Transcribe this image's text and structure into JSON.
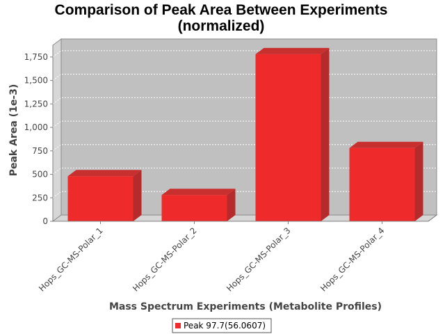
{
  "chart_data": {
    "type": "bar",
    "title": [
      "Comparison of Peak Area Between Experiments",
      "(normalized)"
    ],
    "xlabel": "Mass Spectrum Experiments (Metabolite Profiles)",
    "ylabel": "Peak Area (1e-3)",
    "categories": [
      "Hops_GC-MS-Polar_1",
      "Hops_GC-MS-Polar_2",
      "Hops_GC-MS-Polar_3",
      "Hops_GC-MS-Polar_4"
    ],
    "series": [
      {
        "name": "Peak 97.7(56.0607)",
        "color": "#ee2a2a",
        "values": [
          480,
          280,
          1780,
          780
        ]
      }
    ],
    "ylim": [
      0,
      1875
    ],
    "yticks": [
      0,
      250,
      500,
      750,
      1000,
      1250,
      1500,
      1750
    ],
    "ytick_labels": [
      "0",
      "250",
      "500",
      "750",
      "1,000",
      "1,250",
      "1,500",
      "1,750"
    ],
    "grid": true,
    "legend_position": "bottom",
    "plot_background": "#c0c0c0"
  }
}
